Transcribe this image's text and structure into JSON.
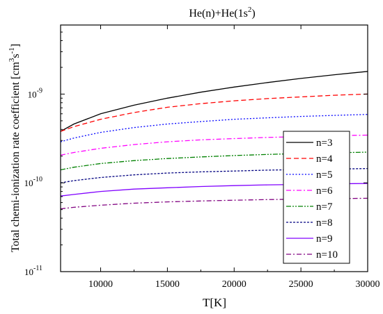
{
  "chart_data": {
    "type": "line",
    "title_main": "He(n)+He(1s",
    "title_sup": "2",
    "title_end": ")",
    "xlabel": "T[K]",
    "ylabel_main": "Total chemi-ionization rate coefficient [cm",
    "ylabel_sup1": "3",
    "ylabel_mid": "s",
    "ylabel_sup2": "-1",
    "ylabel_end": "]",
    "x_scale": "linear",
    "y_scale": "log",
    "xlim": [
      7000,
      30000
    ],
    "ylim": [
      1e-11,
      6e-09
    ],
    "x_ticks": [
      10000,
      15000,
      20000,
      25000,
      30000
    ],
    "x_tick_labels": [
      "10000",
      "15000",
      "20000",
      "25000",
      "30000"
    ],
    "y_ticks": [
      {
        "value": 1e-11,
        "base": "10",
        "exp": "-11"
      },
      {
        "value": 1e-10,
        "base": "10",
        "exp": "-10"
      },
      {
        "value": 1e-09,
        "base": "10",
        "exp": "-9"
      }
    ],
    "grid": false,
    "legend_position": "right",
    "x": [
      7000,
      8000,
      10000,
      12500,
      15000,
      17500,
      20000,
      22500,
      25000,
      27500,
      30000
    ],
    "series": [
      {
        "name": "n=3",
        "color": "#000000",
        "dash": "solid",
        "values": [
          3.8e-10,
          4.6e-10,
          6e-10,
          7.5e-10,
          9e-10,
          1.05e-09,
          1.2e-09,
          1.35e-09,
          1.5e-09,
          1.65e-09,
          1.8e-09
        ]
      },
      {
        "name": "n=4",
        "color": "#ff0000",
        "dash": "dash",
        "values": [
          3.8e-10,
          4.3e-10,
          5.2e-10,
          6.2e-10,
          7.1e-10,
          7.8e-10,
          8.4e-10,
          8.9e-10,
          9.3e-10,
          9.7e-10,
          1e-09
        ]
      },
      {
        "name": "n=5",
        "color": "#0000ff",
        "dash": "dot",
        "values": [
          2.9e-10,
          3.2e-10,
          3.7e-10,
          4.2e-10,
          4.6e-10,
          4.9e-10,
          5.2e-10,
          5.4e-10,
          5.6e-10,
          5.75e-10,
          5.9e-10
        ]
      },
      {
        "name": "n=6",
        "color": "#ff00ff",
        "dash": "dashdot",
        "values": [
          2.05e-10,
          2.2e-10,
          2.45e-10,
          2.7e-10,
          2.9e-10,
          3.05e-10,
          3.15e-10,
          3.25e-10,
          3.32e-10,
          3.4e-10,
          3.45e-10
        ]
      },
      {
        "name": "n=7",
        "color": "#008000",
        "dash": "dashdotdot",
        "values": [
          1.4e-10,
          1.5e-10,
          1.65e-10,
          1.78e-10,
          1.88e-10,
          1.96e-10,
          2.03e-10,
          2.09e-10,
          2.14e-10,
          2.18e-10,
          2.22e-10
        ]
      },
      {
        "name": "n=8",
        "color": "#000080",
        "dash": "shortdash",
        "values": [
          1e-10,
          1.06e-10,
          1.15e-10,
          1.23e-10,
          1.29e-10,
          1.33e-10,
          1.36e-10,
          1.39e-10,
          1.41e-10,
          1.43e-10,
          1.45e-10
        ]
      },
      {
        "name": "n=9",
        "color": "#8000ff",
        "dash": "solid",
        "values": [
          7.1e-11,
          7.4e-11,
          8e-11,
          8.5e-11,
          8.8e-11,
          9.1e-11,
          9.3e-11,
          9.5e-11,
          9.6e-11,
          9.75e-11,
          9.85e-11
        ]
      },
      {
        "name": "n=10",
        "color": "#800080",
        "dash": "dashdot",
        "values": [
          5.1e-11,
          5.3e-11,
          5.6e-11,
          5.9e-11,
          6.1e-11,
          6.25e-11,
          6.38e-11,
          6.48e-11,
          6.56e-11,
          6.63e-11,
          6.7e-11
        ]
      }
    ]
  }
}
